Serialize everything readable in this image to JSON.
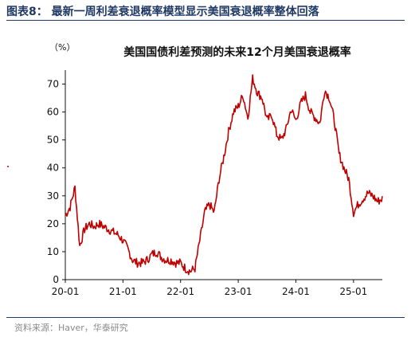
{
  "figure": {
    "label": "图表8：  最新一周利差衰退概率模型显示美国衰退概率整体回落",
    "source": "资料来源：Haver，华泰研究"
  },
  "colors": {
    "header": "#1f3864",
    "series": "#c00000",
    "axis": "#111111",
    "source_text": "#8a8a8a"
  },
  "chart_data": {
    "type": "line",
    "title": "美国国债利差预测的未来12个月美国衰退概率",
    "ylabel": "（%）",
    "xlabel": "",
    "ylim": [
      0,
      75
    ],
    "yticks": [
      "0",
      "10",
      "20",
      "30",
      "40",
      "50",
      "60",
      "70"
    ],
    "xtick_labels": [
      "20-01",
      "21-01",
      "22-01",
      "23-01",
      "24-01",
      "25-01"
    ],
    "xlim": [
      "2020-01",
      "2025-07"
    ],
    "grid": false,
    "legend": "none",
    "series": [
      {
        "x": [
          "2020-01",
          "2020-02",
          "2020-03",
          "2020-04",
          "2020-05",
          "2020-06",
          "2020-07",
          "2020-08",
          "2020-09",
          "2020-10",
          "2020-11",
          "2020-12",
          "2021-01",
          "2021-02",
          "2021-03",
          "2021-04",
          "2021-05",
          "2021-06",
          "2021-07",
          "2021-08",
          "2021-09",
          "2021-10",
          "2021-11",
          "2021-12",
          "2022-01",
          "2022-02",
          "2022-03",
          "2022-04",
          "2022-05",
          "2022-06",
          "2022-07",
          "2022-08",
          "2022-09",
          "2022-10",
          "2022-11",
          "2022-12",
          "2023-01",
          "2023-02",
          "2023-03",
          "2023-04",
          "2023-05",
          "2023-06",
          "2023-07",
          "2023-08",
          "2023-09",
          "2023-10",
          "2023-11",
          "2023-12",
          "2024-01",
          "2024-02",
          "2024-03",
          "2024-04",
          "2024-05",
          "2024-06",
          "2024-07",
          "2024-08",
          "2024-09",
          "2024-10",
          "2024-11",
          "2024-12",
          "2025-01",
          "2025-02",
          "2025-03",
          "2025-04",
          "2025-05",
          "2025-06",
          "2025-07"
        ],
        "values": [
          23,
          26,
          33,
          12,
          18,
          20,
          19,
          20,
          19,
          18,
          17,
          16,
          14,
          11,
          7,
          6,
          6,
          7,
          9,
          10,
          8,
          7,
          7,
          6,
          6,
          4,
          3,
          4,
          14,
          24,
          27,
          24,
          36,
          44,
          53,
          60,
          62,
          66,
          58,
          72,
          67,
          65,
          57,
          59,
          52,
          50,
          54,
          61,
          57,
          63,
          66,
          60,
          58,
          56,
          68,
          65,
          57,
          45,
          40,
          36,
          24,
          27,
          29,
          31,
          30,
          28,
          29
        ]
      }
    ]
  }
}
